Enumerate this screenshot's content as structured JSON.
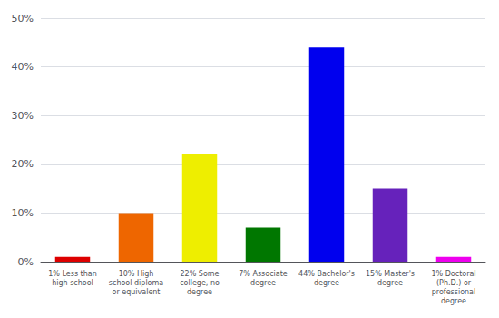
{
  "chart_data": {
    "type": "bar",
    "categories": [
      "1% Less than\nhigh school",
      "10% High\nschool diploma\nor equivalent",
      "22% Some\ncollege, no\ndegree",
      "7% Associate\ndegree",
      "44% Bachelor's\ndegree",
      "15% Master's\ndegree",
      "1% Doctoral\n(Ph.D.) or\nprofessional\ndegree"
    ],
    "values": [
      1,
      10,
      22,
      7,
      44,
      15,
      1
    ],
    "colors": [
      "#dd0000",
      "#ee6600",
      "#eeee00",
      "#007700",
      "#0000ee",
      "#6622bb",
      "#ee00ee"
    ],
    "ylim": [
      0,
      50
    ],
    "yticks": [
      {
        "value": 0,
        "label": "0%"
      },
      {
        "value": 10,
        "label": "10%"
      },
      {
        "value": 20,
        "label": "20%"
      },
      {
        "value": 30,
        "label": "30%"
      },
      {
        "value": 40,
        "label": "40%"
      },
      {
        "value": 50,
        "label": "50%"
      }
    ],
    "grid": true
  }
}
